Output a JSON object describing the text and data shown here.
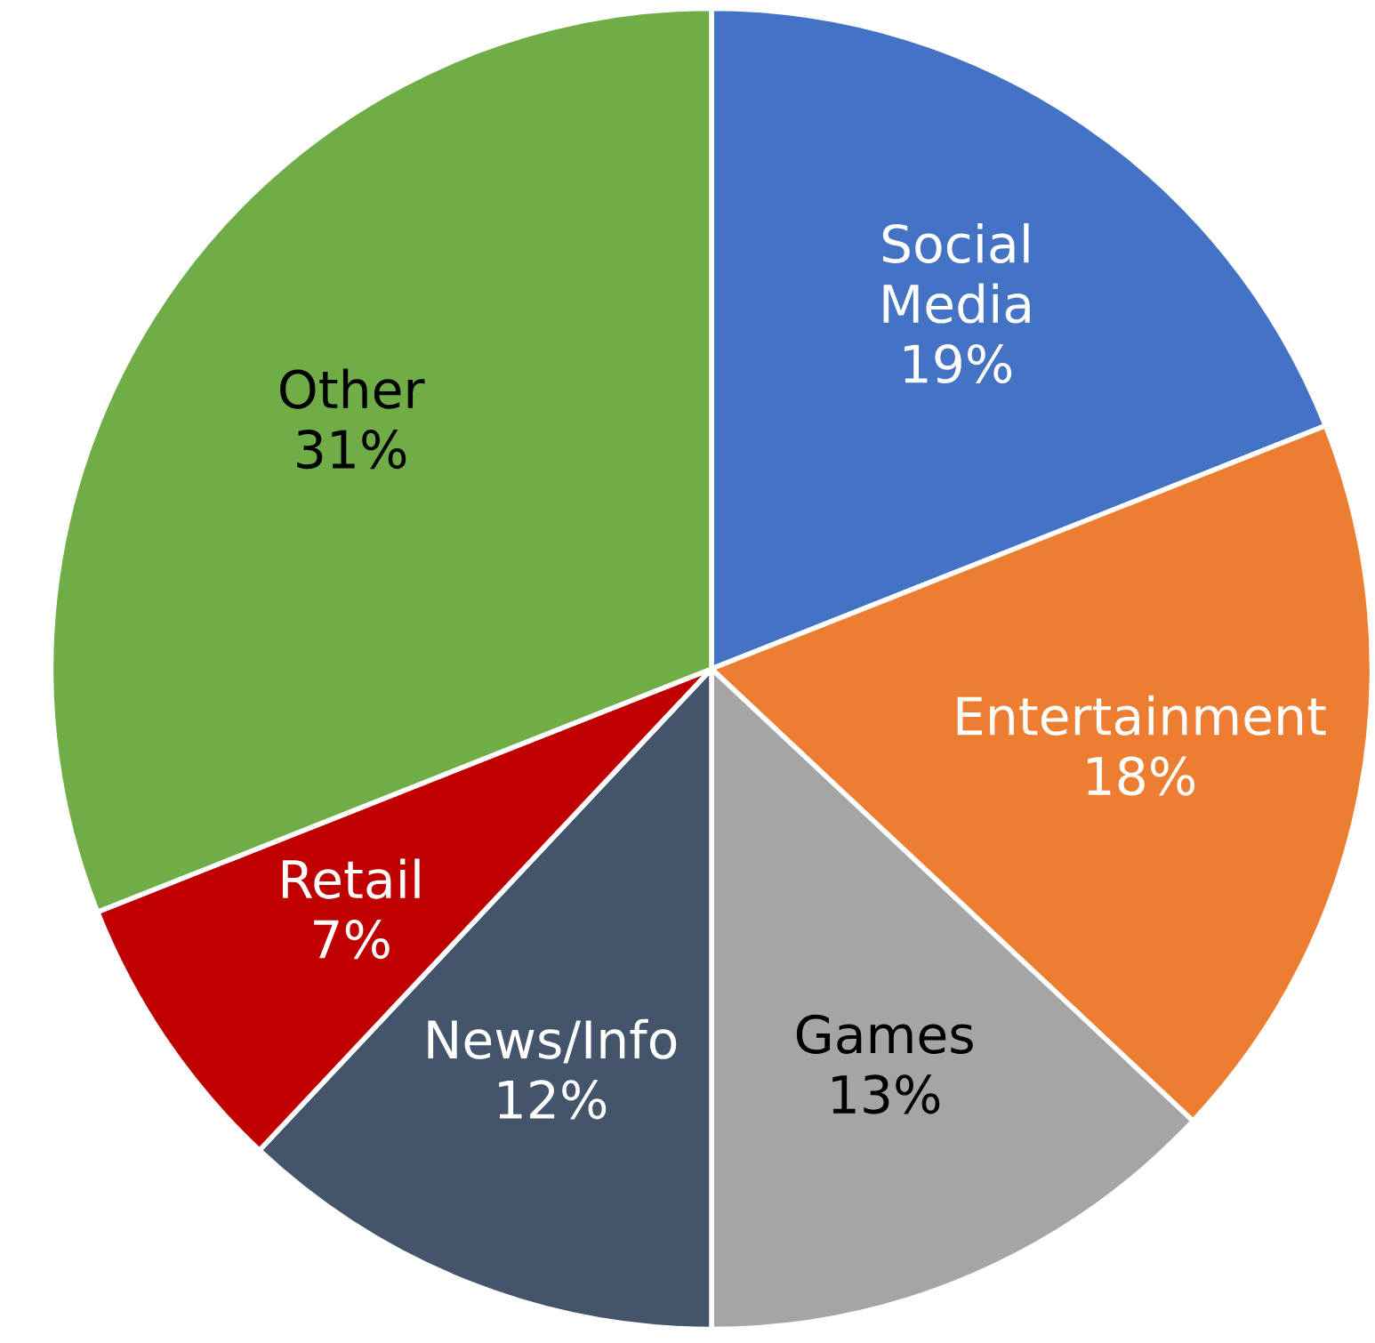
{
  "chart_data": {
    "type": "pie",
    "categories": [
      "Social Media",
      "Entertainment",
      "Games",
      "News/Info",
      "Retail",
      "Other"
    ],
    "values": [
      19,
      18,
      13,
      12,
      7,
      31
    ],
    "colors": [
      "#4472c4",
      "#ed7d31",
      "#a5a5a5",
      "#44546a",
      "#c00000",
      "#70ad47"
    ],
    "value_labels": [
      "19%",
      "18%",
      "13%",
      "12%",
      "7%",
      "31%"
    ]
  }
}
